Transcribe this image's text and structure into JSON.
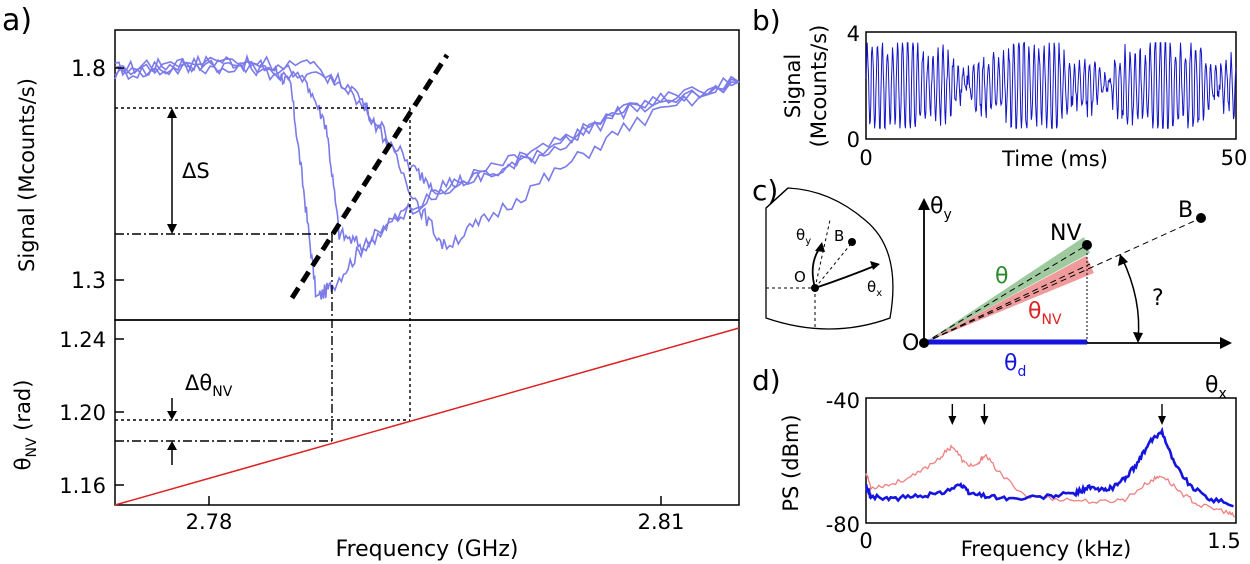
{
  "panels": {
    "a": "a)",
    "b": "b)",
    "c": "c)",
    "d": "d)"
  },
  "chart_data": [
    {
      "id": "a-top",
      "type": "line",
      "ylabel": "Signal (Mcounts/s)",
      "yticks": [
        "1.3",
        "1.8"
      ],
      "ylim": [
        1.25,
        1.92
      ],
      "xlim": [
        2.7741,
        2.8128
      ],
      "series": [
        {
          "values_x": [
            2.7741,
            2.7775,
            2.781,
            2.784,
            2.785,
            2.7858,
            2.7866,
            2.7876,
            2.7895,
            2.792,
            2.796,
            2.801,
            2.806,
            2.8128
          ],
          "values_y": [
            1.83,
            1.84,
            1.85,
            1.83,
            1.79,
            1.55,
            1.3,
            1.33,
            1.42,
            1.5,
            1.58,
            1.65,
            1.74,
            1.8
          ]
        },
        {
          "values_x": [
            2.7741,
            2.778,
            2.782,
            2.786,
            2.7872,
            2.788,
            2.7895,
            2.792,
            2.796,
            2.801,
            2.806,
            2.8128
          ],
          "values_y": [
            1.82,
            1.83,
            1.84,
            1.8,
            1.7,
            1.45,
            1.42,
            1.5,
            1.57,
            1.65,
            1.74,
            1.8
          ]
        },
        {
          "values_x": [
            2.7741,
            2.779,
            2.784,
            2.788,
            2.7905,
            2.7925,
            2.794,
            2.797,
            2.801,
            2.806,
            2.8128
          ],
          "values_y": [
            1.82,
            1.84,
            1.83,
            1.8,
            1.7,
            1.6,
            1.56,
            1.58,
            1.64,
            1.74,
            1.8
          ]
        },
        {
          "values_x": [
            2.7741,
            2.781,
            2.786,
            2.789,
            2.791,
            2.793,
            2.7945,
            2.797,
            2.801,
            2.806,
            2.8128
          ],
          "values_y": [
            1.83,
            1.85,
            1.84,
            1.78,
            1.66,
            1.51,
            1.42,
            1.48,
            1.58,
            1.7,
            1.8
          ]
        }
      ],
      "annotations": {
        "delta_s": "ΔS"
      }
    },
    {
      "id": "a-bottom",
      "type": "line",
      "xlabel": "Frequency (GHz)",
      "xticks": [
        "2.78",
        "2.81"
      ],
      "ylabel_main": "θ",
      "ylabel_sub": "NV",
      "ylabel_unit": " (rad)",
      "yticks": [
        "1.24",
        "1.20",
        "1.16"
      ],
      "ylim": [
        1.15,
        1.25
      ],
      "xlim": [
        2.7741,
        2.8128
      ],
      "line_color": "#dd2222",
      "series": [
        {
          "x": [
            2.7741,
            2.8128
          ],
          "y": [
            1.15,
            1.25
          ]
        }
      ],
      "annotations": {
        "delta_main": "Δθ",
        "delta_sub": "NV"
      }
    },
    {
      "id": "b",
      "type": "line",
      "xlabel": "Time (ms)",
      "ylabel_line1": "Signal",
      "ylabel_line2": "(Mcounts/s)",
      "xticks": [
        "0",
        "50"
      ],
      "yticks": [
        "0",
        "4"
      ],
      "xlim": [
        0,
        50
      ],
      "ylim": [
        0,
        4
      ],
      "line_color": "#1515c8"
    },
    {
      "id": "d",
      "type": "line",
      "xlabel": "Frequency (kHz)",
      "ylabel": "PS (dBm)",
      "xticks": [
        "0",
        "1.5"
      ],
      "yticks": [
        "-40",
        "-80"
      ],
      "xlim": [
        0,
        1.5
      ],
      "ylim": [
        -80,
        -38
      ],
      "peaks_marked_khz": [
        0.35,
        0.48,
        1.2
      ],
      "series": [
        {
          "color": "#f08080",
          "x": [
            0.0,
            0.02,
            0.1,
            0.2,
            0.3,
            0.35,
            0.4,
            0.45,
            0.48,
            0.55,
            0.65,
            0.8,
            0.95,
            1.05,
            1.15,
            1.2,
            1.28,
            1.35,
            1.45,
            1.5
          ],
          "y": [
            -63,
            -68,
            -67,
            -64,
            -58,
            -54,
            -60,
            -61,
            -57,
            -64,
            -71,
            -72,
            -73,
            -72,
            -66,
            -64,
            -70,
            -74,
            -76,
            -78
          ]
        },
        {
          "color": "#1515dd",
          "x": [
            0.0,
            0.02,
            0.1,
            0.2,
            0.3,
            0.38,
            0.42,
            0.5,
            0.6,
            0.75,
            0.85,
            0.9,
            0.95,
            1.0,
            1.05,
            1.1,
            1.15,
            1.2,
            1.25,
            1.32,
            1.4,
            1.5
          ],
          "y": [
            -68,
            -71,
            -72,
            -71,
            -70,
            -67,
            -70,
            -71,
            -72,
            -71,
            -70,
            -68,
            -69,
            -68,
            -65,
            -60,
            -53,
            -49,
            -60,
            -68,
            -72,
            -74
          ]
        }
      ]
    }
  ],
  "diagram_c": {
    "theta_y_main": "θ",
    "theta_y_sub": "y",
    "theta_x_main": "θ",
    "theta_x_sub": "x",
    "nv_label": "NV",
    "b_label": "B",
    "o_label": "O",
    "theta_label": "θ",
    "theta_nv_main": "θ",
    "theta_nv_sub": "NV",
    "theta_d_main": "θ",
    "theta_d_sub": "d",
    "question": "?",
    "inset": {
      "theta_y_main": "θ",
      "theta_y_sub": "y",
      "theta_x_main": "θ",
      "theta_x_sub": "x",
      "b_label": "B",
      "o_label": "O"
    },
    "colors": {
      "theta": "#2a8a2a",
      "theta_nv": "#dd2222",
      "theta_d": "#1515dd"
    }
  }
}
